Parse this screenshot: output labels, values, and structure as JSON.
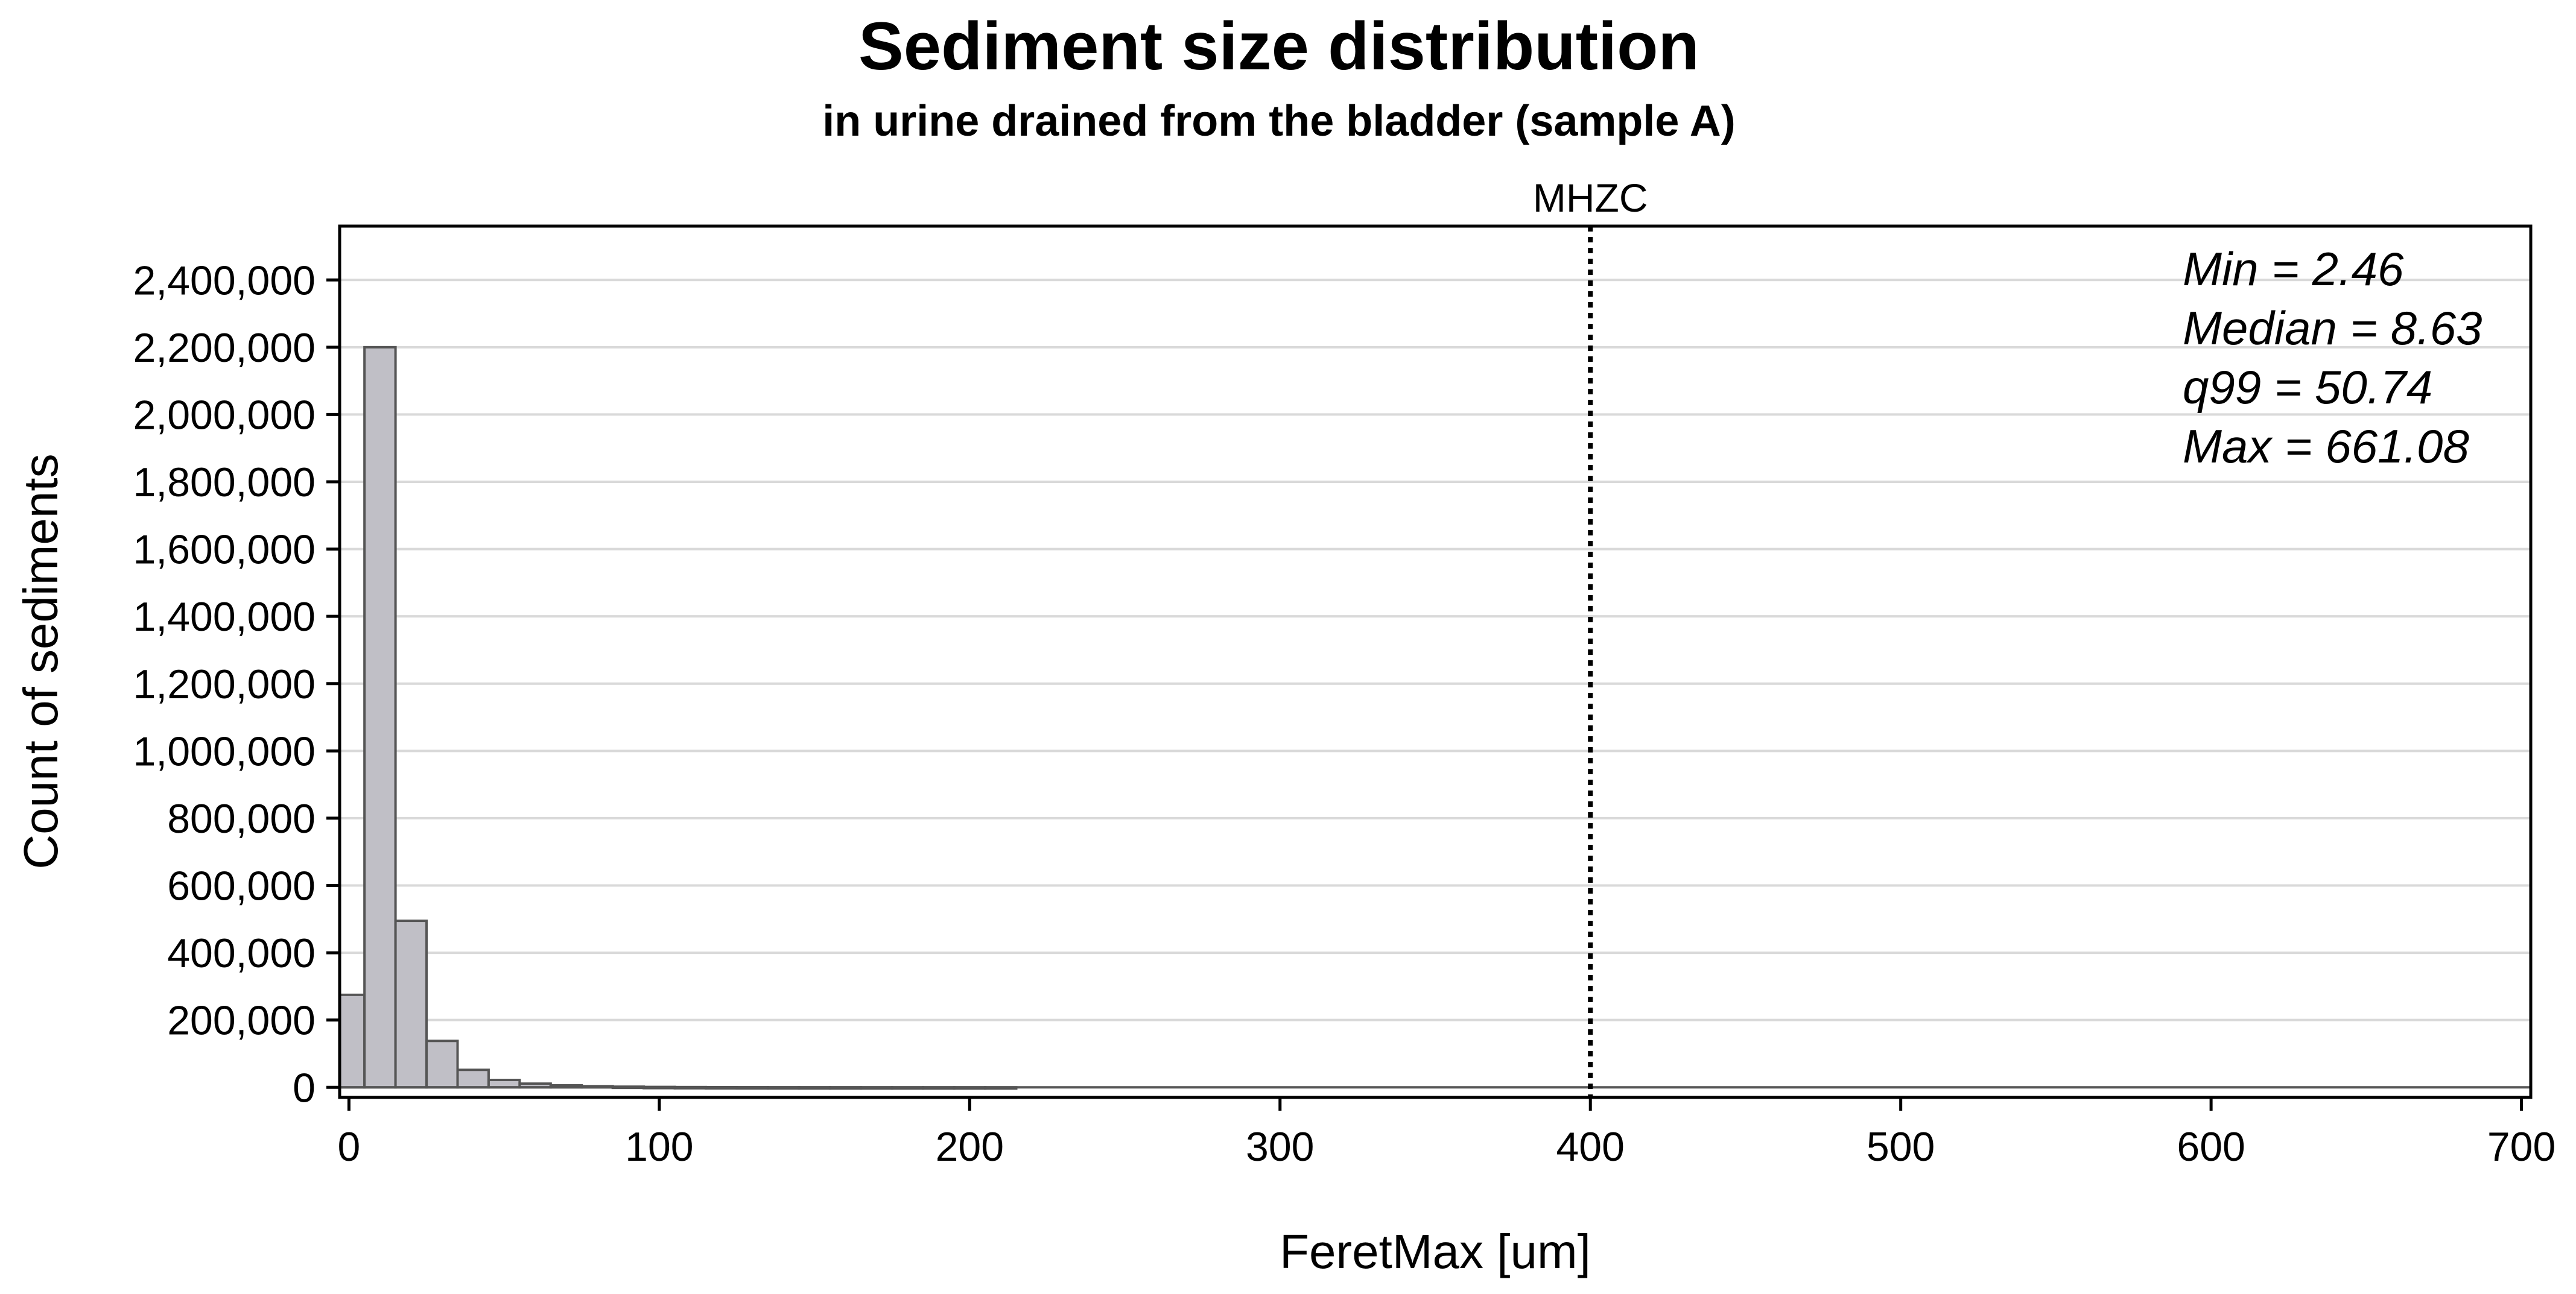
{
  "chart_data": {
    "type": "bar",
    "title": "Sediment size distribution",
    "subtitle": "in urine drained from the bladder (sample A)",
    "xlabel": "FeretMax [um]",
    "ylabel": "Count of sediments",
    "xlim": [
      -3,
      703
    ],
    "ylim": [
      -30000,
      2560000
    ],
    "x_ticks": [
      0,
      100,
      200,
      300,
      400,
      500,
      600,
      700
    ],
    "x_tick_labels": [
      "0",
      "100",
      "200",
      "300",
      "400",
      "500",
      "600",
      "700"
    ],
    "y_ticks": [
      0,
      200000,
      400000,
      600000,
      800000,
      1000000,
      1200000,
      1400000,
      1600000,
      1800000,
      2000000,
      2200000,
      2400000
    ],
    "y_tick_labels": [
      "0",
      "200,000",
      "400,000",
      "600,000",
      "800,000",
      "1,000,000",
      "1,200,000",
      "1,400,000",
      "1,600,000",
      "1,800,000",
      "2,000,000",
      "2,200,000",
      "2,400,000"
    ],
    "grid": true,
    "bin_width": 10,
    "bins": [
      {
        "start": -5,
        "value": 275000
      },
      {
        "start": 5,
        "value": 2200000
      },
      {
        "start": 15,
        "value": 495000
      },
      {
        "start": 25,
        "value": 138000
      },
      {
        "start": 35,
        "value": 52000
      },
      {
        "start": 45,
        "value": 22000
      },
      {
        "start": 55,
        "value": 11000
      },
      {
        "start": 65,
        "value": 6000
      },
      {
        "start": 75,
        "value": 3500
      },
      {
        "start": 85,
        "value": 2000
      },
      {
        "start": 95,
        "value": 1200
      },
      {
        "start": 105,
        "value": 800
      },
      {
        "start": 115,
        "value": 500
      },
      {
        "start": 125,
        "value": 350
      },
      {
        "start": 135,
        "value": 250
      },
      {
        "start": 145,
        "value": 180
      },
      {
        "start": 155,
        "value": 130
      },
      {
        "start": 165,
        "value": 100
      },
      {
        "start": 175,
        "value": 80
      },
      {
        "start": 185,
        "value": 60
      },
      {
        "start": 195,
        "value": 50
      },
      {
        "start": 205,
        "value": 40
      }
    ],
    "reference_line": {
      "x": 400,
      "label": "MHZC",
      "style": "dotted"
    },
    "stats": [
      "Min = 2.46",
      "Median = 8.63",
      "q99 = 50.74",
      "Max = 661.08"
    ],
    "colors": {
      "bar_fill": "#c0bfc6",
      "bar_edge": "#555555",
      "grid": "#d9d9d9",
      "frame": "#000000"
    }
  }
}
